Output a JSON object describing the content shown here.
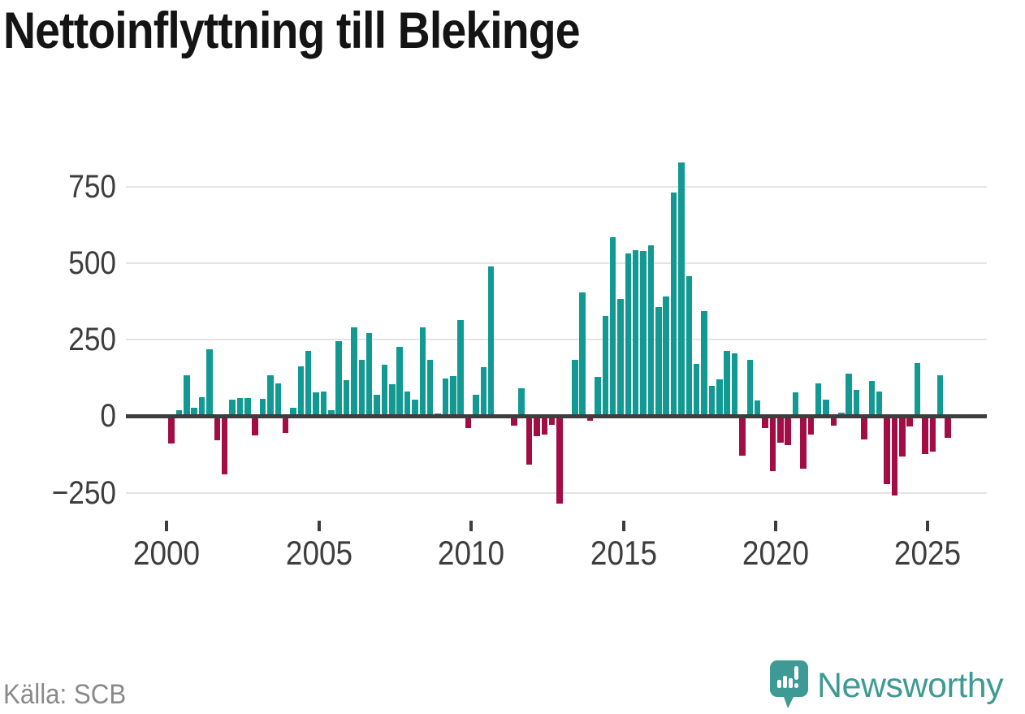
{
  "header": {
    "title": "Nettoinflyttning till Blekinge"
  },
  "footer": {
    "source": "Källa: SCB",
    "brand": "Newsworthy"
  },
  "colors": {
    "positive_bar": "#129a92",
    "negative_bar": "#a30d45",
    "gridline": "#e4e4e4",
    "axis_line": "#3d3d3d",
    "axis_text": "#3d3d3d",
    "title_text": "#141414",
    "source_text": "#8a8a8a",
    "logo_teal": "#3e9a94",
    "background": "#ffffff"
  },
  "chart_data": {
    "type": "bar",
    "title": "Nettoinflyttning till Blekinge",
    "source": "Källa: SCB",
    "frequency": "quarterly",
    "start_year": 2000,
    "start_quarter": 1,
    "grid": "horizontal",
    "legend": "none",
    "ylim": [
      -300,
      870
    ],
    "y_axis": {
      "ticks": [
        {
          "value": 750,
          "label": "750"
        },
        {
          "value": 500,
          "label": "500"
        },
        {
          "value": 250,
          "label": "250"
        },
        {
          "value": 0,
          "label": "0"
        },
        {
          "value": -250,
          "label": "−250"
        }
      ]
    },
    "x_axis": {
      "ticks": [
        {
          "year": 2000,
          "label": "2000"
        },
        {
          "year": 2005,
          "label": "2005"
        },
        {
          "year": 2010,
          "label": "2010"
        },
        {
          "year": 2015,
          "label": "2015"
        },
        {
          "year": 2020,
          "label": "2020"
        },
        {
          "year": 2025,
          "label": "2025"
        }
      ]
    },
    "series": [
      {
        "values": [
          -90,
          20,
          134,
          27,
          62,
          219,
          -79,
          -191,
          54,
          58,
          60,
          -64,
          56,
          133,
          106,
          -54,
          28,
          162,
          212,
          78,
          81,
          19,
          245,
          117,
          291,
          185,
          271,
          70,
          168,
          103,
          226,
          80,
          53,
          289,
          183,
          10,
          122,
          130,
          314,
          -38,
          70,
          159,
          489,
          0,
          0,
          -31,
          92,
          -159,
          -65,
          -61,
          -29,
          -285,
          0,
          183,
          405,
          -16,
          129,
          326,
          585,
          384,
          531,
          541,
          539,
          559,
          357,
          391,
          731,
          830,
          458,
          171,
          343,
          98,
          120,
          213,
          205,
          -130,
          184,
          50,
          -38,
          -179,
          -88,
          -96,
          78,
          -171,
          -61,
          106,
          55,
          -30,
          12,
          139,
          87,
          -77,
          116,
          81,
          -221,
          -259,
          -133,
          -35,
          173,
          -124,
          -115,
          134,
          -70
        ]
      }
    ]
  }
}
